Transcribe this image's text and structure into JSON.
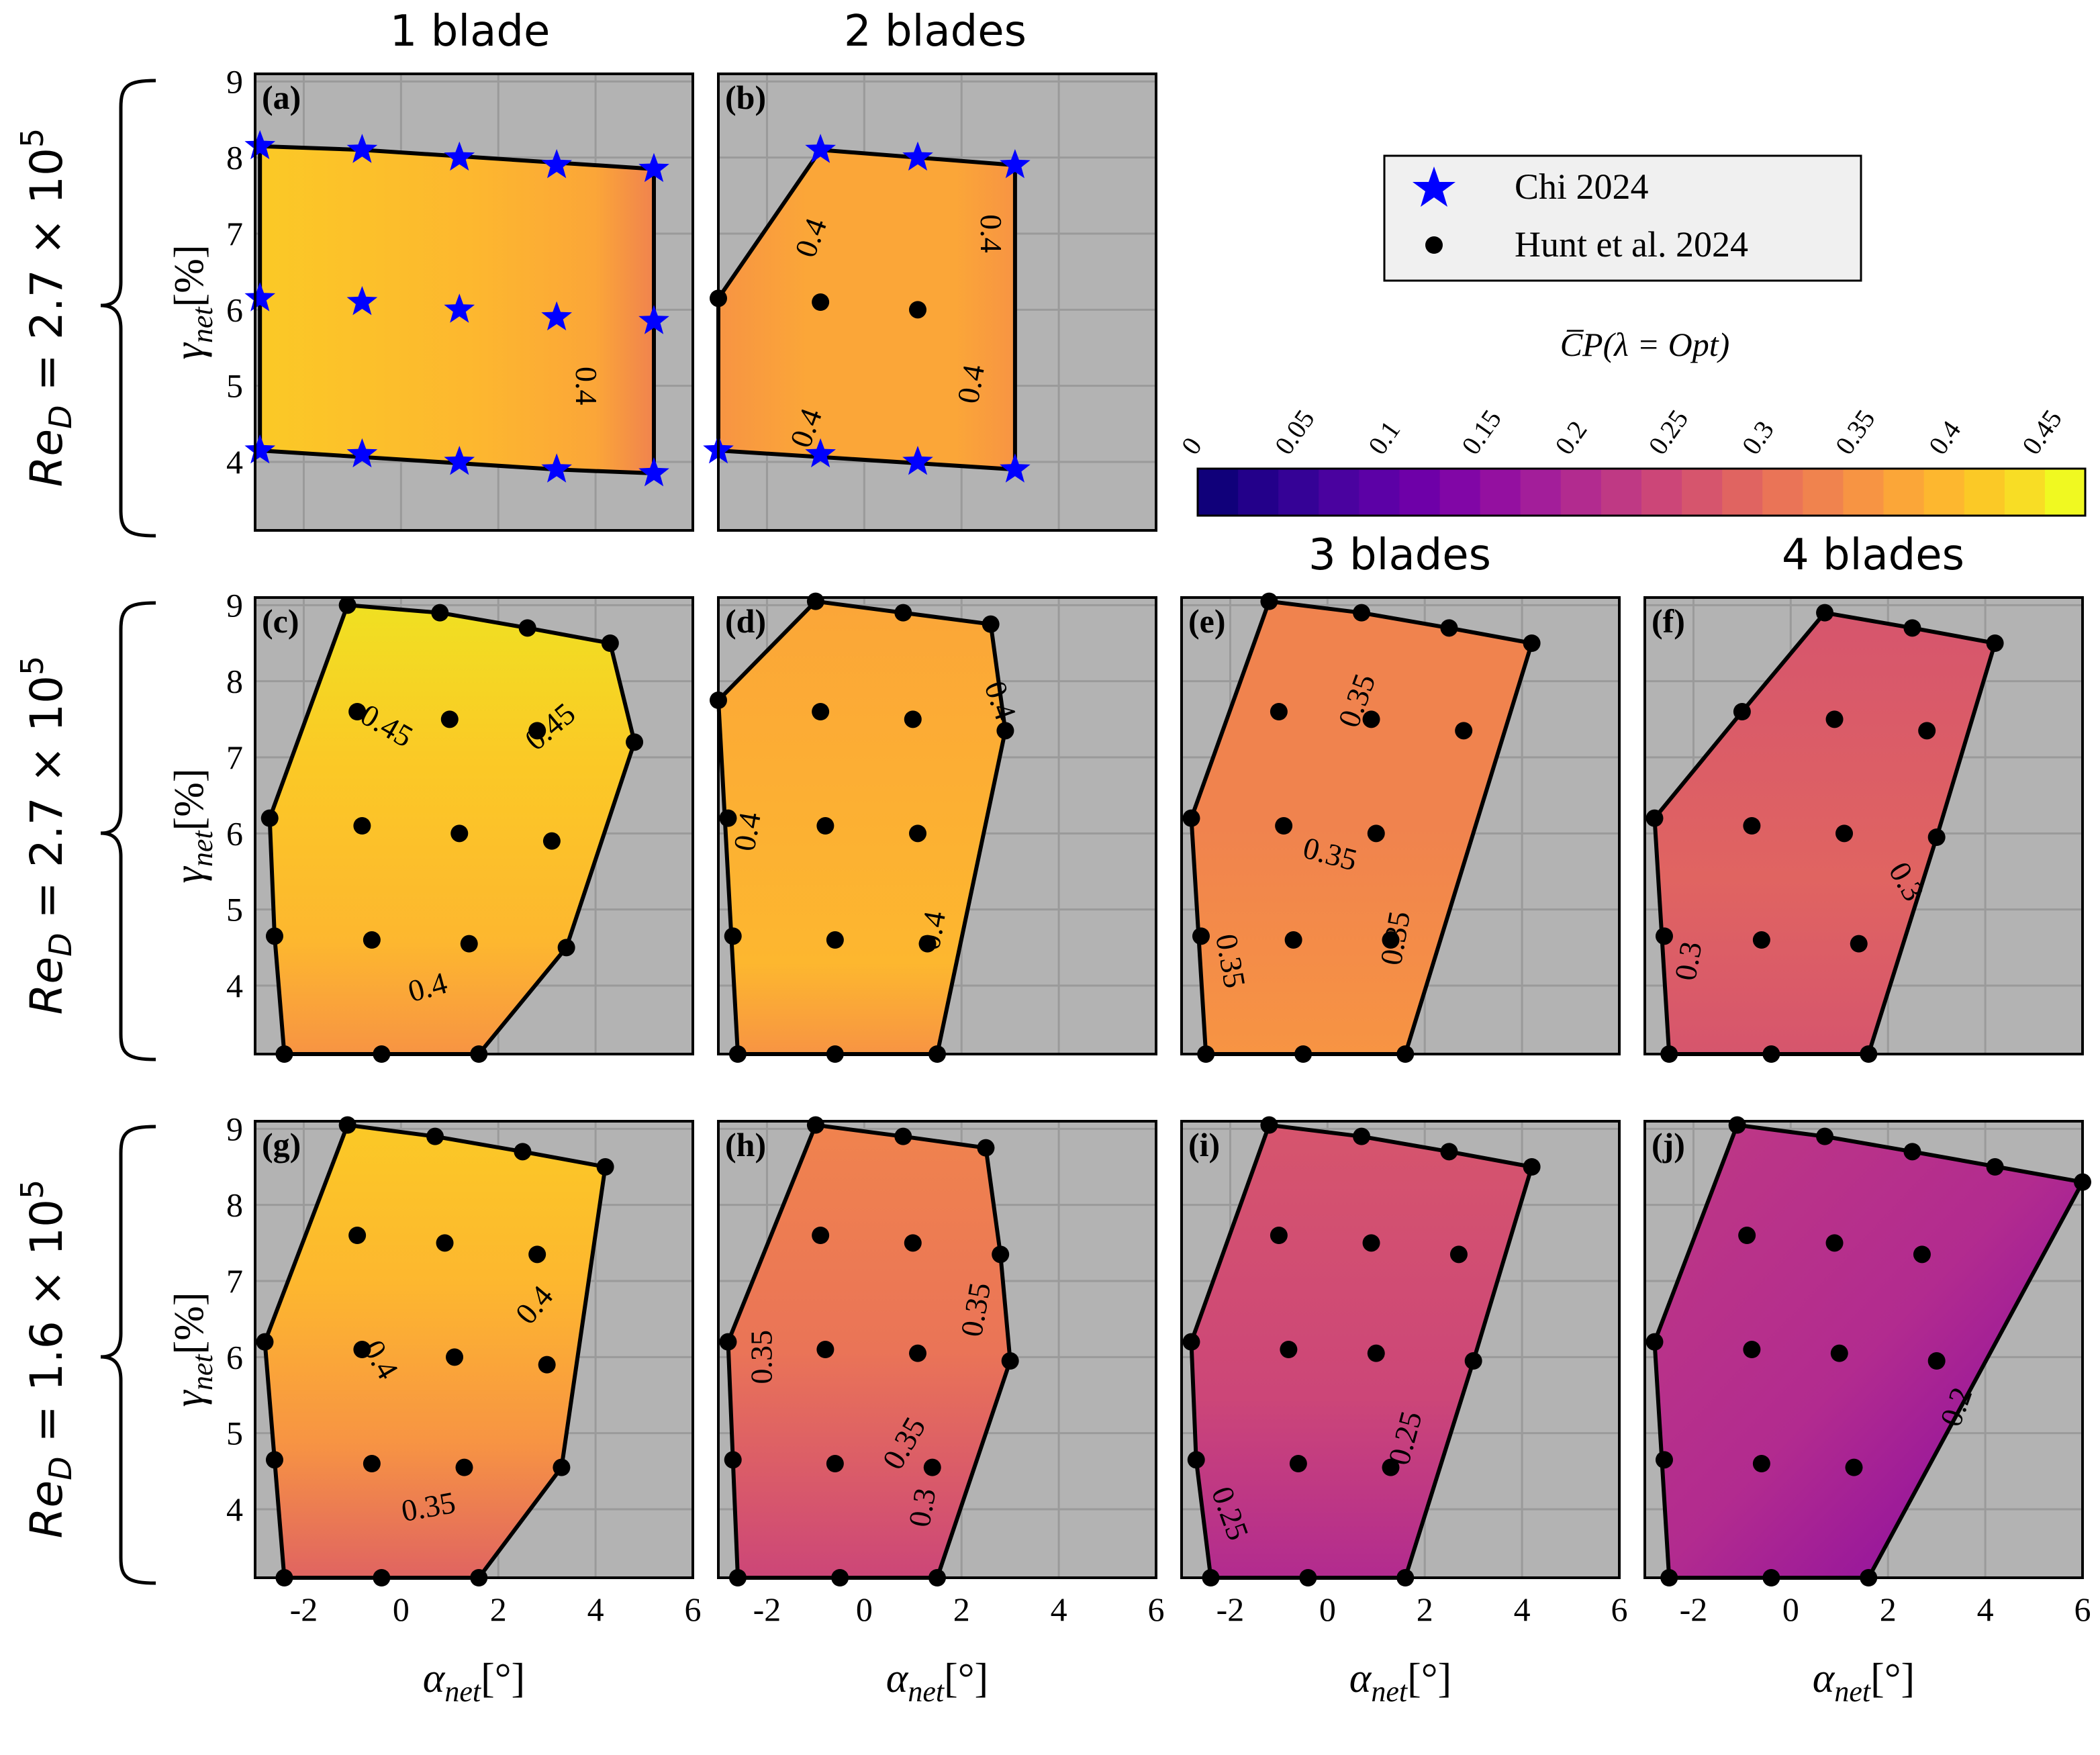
{
  "columns": {
    "col1": "1 blade",
    "col2": "2 blades",
    "col3": "3 blades",
    "col4": "4 blades"
  },
  "rows": {
    "row1": {
      "base": "Re",
      "sub": "D",
      "value": " = 2.7 × 10",
      "exp": "5"
    },
    "row2": {
      "base": "Re",
      "sub": "D",
      "value": " = 2.7 × 10",
      "exp": "5"
    },
    "row3": {
      "base": "Re",
      "sub": "D",
      "value": " = 1.6 × 10",
      "exp": "5"
    }
  },
  "axes": {
    "xlabel": {
      "base": "α",
      "sub": "net",
      "unit": "[°]"
    },
    "ylabel": {
      "base": "γ",
      "sub": "net",
      "unit": "[%]"
    },
    "xticks": [
      "-2",
      "0",
      "2",
      "4",
      "6"
    ],
    "yticks": [
      "4",
      "5",
      "6",
      "7",
      "8",
      "9"
    ]
  },
  "legend": {
    "chi": "Chi 2024",
    "hunt": "Hunt et al. 2024"
  },
  "colorbar": {
    "title": "C̅P(λ = Opt)",
    "ticks": [
      "0",
      "0.05",
      "0.1",
      "0.15",
      "0.2",
      "0.25",
      "0.3",
      "0.35",
      "0.4",
      "0.45"
    ],
    "colormap": "plasma",
    "colors": [
      "#10007a",
      "#23008a",
      "#350296",
      "#4a029f",
      "#5c01a6",
      "#6e00a8",
      "#8106a6",
      "#9410a0",
      "#a31e9a",
      "#b22b8f",
      "#bf3984",
      "#cc4678",
      "#d6556d",
      "#e06461",
      "#ea7457",
      "#f0834e",
      "#f79443",
      "#fba638",
      "#fdb72f",
      "#fbc926",
      "#f8dd25",
      "#f0f921"
    ]
  },
  "chart_data": [
    {
      "panel": "(a)",
      "type": "contour",
      "blades": 1,
      "xlim": [
        -3,
        6
      ],
      "ylim": [
        3.1,
        9.1
      ],
      "points_chi": [
        [
          -2.9,
          8.15
        ],
        [
          -0.8,
          8.1
        ],
        [
          1.2,
          8.0
        ],
        [
          3.2,
          7.9
        ],
        [
          5.2,
          7.85
        ],
        [
          -2.9,
          6.15
        ],
        [
          -0.8,
          6.1
        ],
        [
          1.2,
          6.0
        ],
        [
          3.2,
          5.9
        ],
        [
          5.2,
          5.85
        ],
        [
          -2.9,
          4.15
        ],
        [
          -0.8,
          4.1
        ],
        [
          1.2,
          4.0
        ],
        [
          3.2,
          3.9
        ],
        [
          5.2,
          3.85
        ]
      ],
      "points_hunt": [],
      "contour_labels": [
        "0.4"
      ],
      "cp_range": [
        0.38,
        0.43
      ]
    },
    {
      "panel": "(b)",
      "type": "contour",
      "blades": 2,
      "xlim": [
        -3,
        6
      ],
      "ylim": [
        3.1,
        9.1
      ],
      "points_chi": [
        [
          -0.9,
          8.1
        ],
        [
          1.1,
          8.0
        ],
        [
          3.1,
          7.9
        ],
        [
          -3.0,
          4.15
        ],
        [
          -0.9,
          4.1
        ],
        [
          1.1,
          4.0
        ],
        [
          3.1,
          3.9
        ]
      ],
      "points_hunt": [
        [
          -3.0,
          6.15
        ],
        [
          -0.9,
          6.1
        ],
        [
          1.1,
          6.0
        ]
      ],
      "contour_labels": [
        "0.4",
        "0.4",
        "0.4",
        "0.4"
      ],
      "cp_range": [
        0.37,
        0.41
      ]
    },
    {
      "panel": "(c)",
      "type": "contour",
      "blades": 1,
      "xlim": [
        -3,
        6
      ],
      "ylim": [
        3.1,
        9.1
      ],
      "points_chi": [],
      "points_hunt": [
        [
          -1.1,
          9.0
        ],
        [
          0.8,
          8.9
        ],
        [
          2.6,
          8.7
        ],
        [
          4.3,
          8.5
        ],
        [
          -0.9,
          7.6
        ],
        [
          1.0,
          7.5
        ],
        [
          2.8,
          7.35
        ],
        [
          4.8,
          7.2
        ],
        [
          -2.7,
          6.2
        ],
        [
          -0.8,
          6.1
        ],
        [
          1.2,
          6.0
        ],
        [
          3.1,
          5.9
        ],
        [
          -2.6,
          4.65
        ],
        [
          -0.6,
          4.6
        ],
        [
          1.4,
          4.55
        ],
        [
          3.4,
          4.5
        ],
        [
          -2.4,
          3.1
        ],
        [
          -0.4,
          3.1
        ],
        [
          1.6,
          3.1
        ]
      ],
      "contour_labels": [
        "0.45",
        "0.45",
        "0.4"
      ],
      "cp_range": [
        0.38,
        0.46
      ]
    },
    {
      "panel": "(d)",
      "type": "contour",
      "blades": 2,
      "xlim": [
        -3,
        6
      ],
      "ylim": [
        3.1,
        9.1
      ],
      "points_chi": [],
      "points_hunt": [
        [
          -1.0,
          9.05
        ],
        [
          0.8,
          8.9
        ],
        [
          2.6,
          8.75
        ],
        [
          -3.0,
          7.75
        ],
        [
          -0.9,
          7.6
        ],
        [
          1.0,
          7.5
        ],
        [
          2.9,
          7.35
        ],
        [
          -2.8,
          6.2
        ],
        [
          -0.8,
          6.1
        ],
        [
          1.1,
          6.0
        ],
        [
          -2.7,
          4.65
        ],
        [
          -0.6,
          4.6
        ],
        [
          1.3,
          4.55
        ],
        [
          -2.6,
          3.1
        ],
        [
          -0.6,
          3.1
        ],
        [
          1.5,
          3.1
        ]
      ],
      "contour_labels": [
        "0.4",
        "0.4",
        "0.4"
      ],
      "cp_range": [
        0.37,
        0.41
      ]
    },
    {
      "panel": "(e)",
      "type": "contour",
      "blades": 3,
      "xlim": [
        -3,
        6
      ],
      "ylim": [
        3.1,
        9.1
      ],
      "points_chi": [],
      "points_hunt": [
        [
          -1.2,
          9.05
        ],
        [
          0.7,
          8.9
        ],
        [
          2.5,
          8.7
        ],
        [
          4.2,
          8.5
        ],
        [
          -1.0,
          7.6
        ],
        [
          0.9,
          7.5
        ],
        [
          2.8,
          7.35
        ],
        [
          -2.8,
          6.2
        ],
        [
          -0.9,
          6.1
        ],
        [
          1.0,
          6.0
        ],
        [
          -2.6,
          4.65
        ],
        [
          -0.7,
          4.6
        ],
        [
          1.3,
          4.6
        ],
        [
          -2.5,
          3.1
        ],
        [
          -0.5,
          3.1
        ],
        [
          1.6,
          3.1
        ]
      ],
      "contour_labels": [
        "0.35",
        "0.35",
        "0.35",
        "0.35"
      ],
      "cp_range": [
        0.33,
        0.37
      ]
    },
    {
      "panel": "(f)",
      "type": "contour",
      "blades": 4,
      "xlim": [
        -3,
        6
      ],
      "ylim": [
        3.1,
        9.1
      ],
      "points_chi": [],
      "points_hunt": [
        [
          0.7,
          8.9
        ],
        [
          2.5,
          8.7
        ],
        [
          4.2,
          8.5
        ],
        [
          -1.0,
          7.6
        ],
        [
          0.9,
          7.5
        ],
        [
          2.8,
          7.35
        ],
        [
          -2.8,
          6.2
        ],
        [
          -0.8,
          6.1
        ],
        [
          1.1,
          6.0
        ],
        [
          3.0,
          5.95
        ],
        [
          -2.6,
          4.65
        ],
        [
          -0.6,
          4.6
        ],
        [
          1.4,
          4.55
        ],
        [
          -2.5,
          3.1
        ],
        [
          -0.4,
          3.1
        ],
        [
          1.6,
          3.1
        ]
      ],
      "contour_labels": [
        "0.3",
        "0.3"
      ],
      "cp_range": [
        0.28,
        0.32
      ]
    },
    {
      "panel": "(g)",
      "type": "contour",
      "blades": 1,
      "xlim": [
        -3,
        6
      ],
      "ylim": [
        3.1,
        9.1
      ],
      "points_chi": [],
      "points_hunt": [
        [
          -1.1,
          9.05
        ],
        [
          0.7,
          8.9
        ],
        [
          2.5,
          8.7
        ],
        [
          4.2,
          8.5
        ],
        [
          -0.9,
          7.6
        ],
        [
          0.9,
          7.5
        ],
        [
          2.8,
          7.35
        ],
        [
          -2.8,
          6.2
        ],
        [
          -0.8,
          6.1
        ],
        [
          1.1,
          6.0
        ],
        [
          3.0,
          5.9
        ],
        [
          -2.6,
          4.65
        ],
        [
          -0.6,
          4.6
        ],
        [
          1.3,
          4.55
        ],
        [
          3.3,
          4.55
        ],
        [
          -2.4,
          3.1
        ],
        [
          -0.4,
          3.1
        ],
        [
          1.6,
          3.1
        ]
      ],
      "contour_labels": [
        "0.4",
        "0.4",
        "0.35"
      ],
      "cp_range": [
        0.33,
        0.43
      ]
    },
    {
      "panel": "(h)",
      "type": "contour",
      "blades": 2,
      "xlim": [
        -3,
        6
      ],
      "ylim": [
        3.1,
        9.1
      ],
      "points_chi": [],
      "points_hunt": [
        [
          -1.0,
          9.05
        ],
        [
          0.8,
          8.9
        ],
        [
          2.5,
          8.75
        ],
        [
          -0.9,
          7.6
        ],
        [
          1.0,
          7.5
        ],
        [
          2.8,
          7.35
        ],
        [
          -2.8,
          6.2
        ],
        [
          -0.8,
          6.1
        ],
        [
          1.1,
          6.05
        ],
        [
          3.0,
          5.95
        ],
        [
          -2.7,
          4.65
        ],
        [
          -0.6,
          4.6
        ],
        [
          1.4,
          4.55
        ],
        [
          -2.6,
          3.1
        ],
        [
          -0.5,
          3.1
        ],
        [
          1.5,
          3.1
        ]
      ],
      "contour_labels": [
        "0.35",
        "0.35",
        "0.35",
        "0.3"
      ],
      "cp_range": [
        0.28,
        0.37
      ]
    },
    {
      "panel": "(i)",
      "type": "contour",
      "blades": 3,
      "xlim": [
        -3,
        6
      ],
      "ylim": [
        3.1,
        9.1
      ],
      "points_chi": [],
      "points_hunt": [
        [
          -1.2,
          9.05
        ],
        [
          0.7,
          8.9
        ],
        [
          2.5,
          8.7
        ],
        [
          4.2,
          8.5
        ],
        [
          -1.0,
          7.6
        ],
        [
          0.9,
          7.5
        ],
        [
          2.7,
          7.35
        ],
        [
          -2.8,
          6.2
        ],
        [
          -0.8,
          6.1
        ],
        [
          1.0,
          6.05
        ],
        [
          3.0,
          5.95
        ],
        [
          -2.7,
          4.65
        ],
        [
          -0.6,
          4.6
        ],
        [
          1.3,
          4.55
        ],
        [
          -2.4,
          3.1
        ],
        [
          -0.4,
          3.1
        ],
        [
          1.6,
          3.1
        ]
      ],
      "contour_labels": [
        "0.25",
        "0.25"
      ],
      "cp_range": [
        0.23,
        0.28
      ]
    },
    {
      "panel": "(j)",
      "type": "contour",
      "blades": 4,
      "xlim": [
        -3,
        6
      ],
      "ylim": [
        3.1,
        9.1
      ],
      "points_chi": [],
      "points_hunt": [
        [
          -1.1,
          9.05
        ],
        [
          0.7,
          8.9
        ],
        [
          2.5,
          8.7
        ],
        [
          4.2,
          8.5
        ],
        [
          6.0,
          8.3
        ],
        [
          -0.9,
          7.6
        ],
        [
          0.9,
          7.5
        ],
        [
          2.7,
          7.35
        ],
        [
          -2.8,
          6.2
        ],
        [
          -0.8,
          6.1
        ],
        [
          1.0,
          6.05
        ],
        [
          3.0,
          5.95
        ],
        [
          -2.6,
          4.65
        ],
        [
          -0.6,
          4.6
        ],
        [
          1.3,
          4.55
        ],
        [
          -2.5,
          3.1
        ],
        [
          -0.4,
          3.1
        ],
        [
          1.6,
          3.1
        ]
      ],
      "contour_labels": [
        "0.2"
      ],
      "cp_range": [
        0.17,
        0.27
      ]
    }
  ]
}
